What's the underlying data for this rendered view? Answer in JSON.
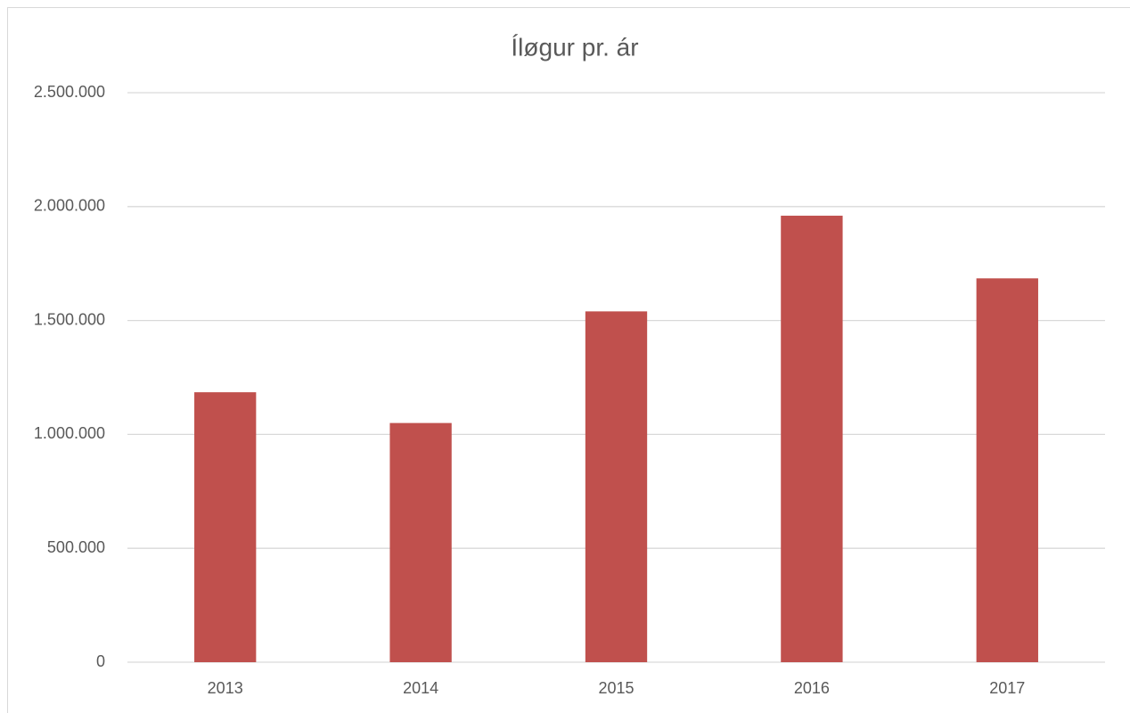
{
  "chart_data": {
    "type": "bar",
    "title": "Íløgur pr. ár",
    "categories": [
      "2013",
      "2014",
      "2015",
      "2016",
      "2017"
    ],
    "values": [
      1185000,
      1050000,
      1540000,
      1960000,
      1685000
    ],
    "color": "#c0504d",
    "ylim": [
      0,
      2500000
    ],
    "yticks": [
      0,
      {
        "value": 500000,
        "label": "500.000"
      },
      {
        "value": 1000000,
        "label": "1.000.000"
      },
      {
        "value": 1500000,
        "label": "1.500.000"
      },
      {
        "value": 2000000,
        "label": "2.000.000"
      },
      {
        "value": 2500000,
        "label": "2.500.000"
      }
    ],
    "grid": true
  }
}
